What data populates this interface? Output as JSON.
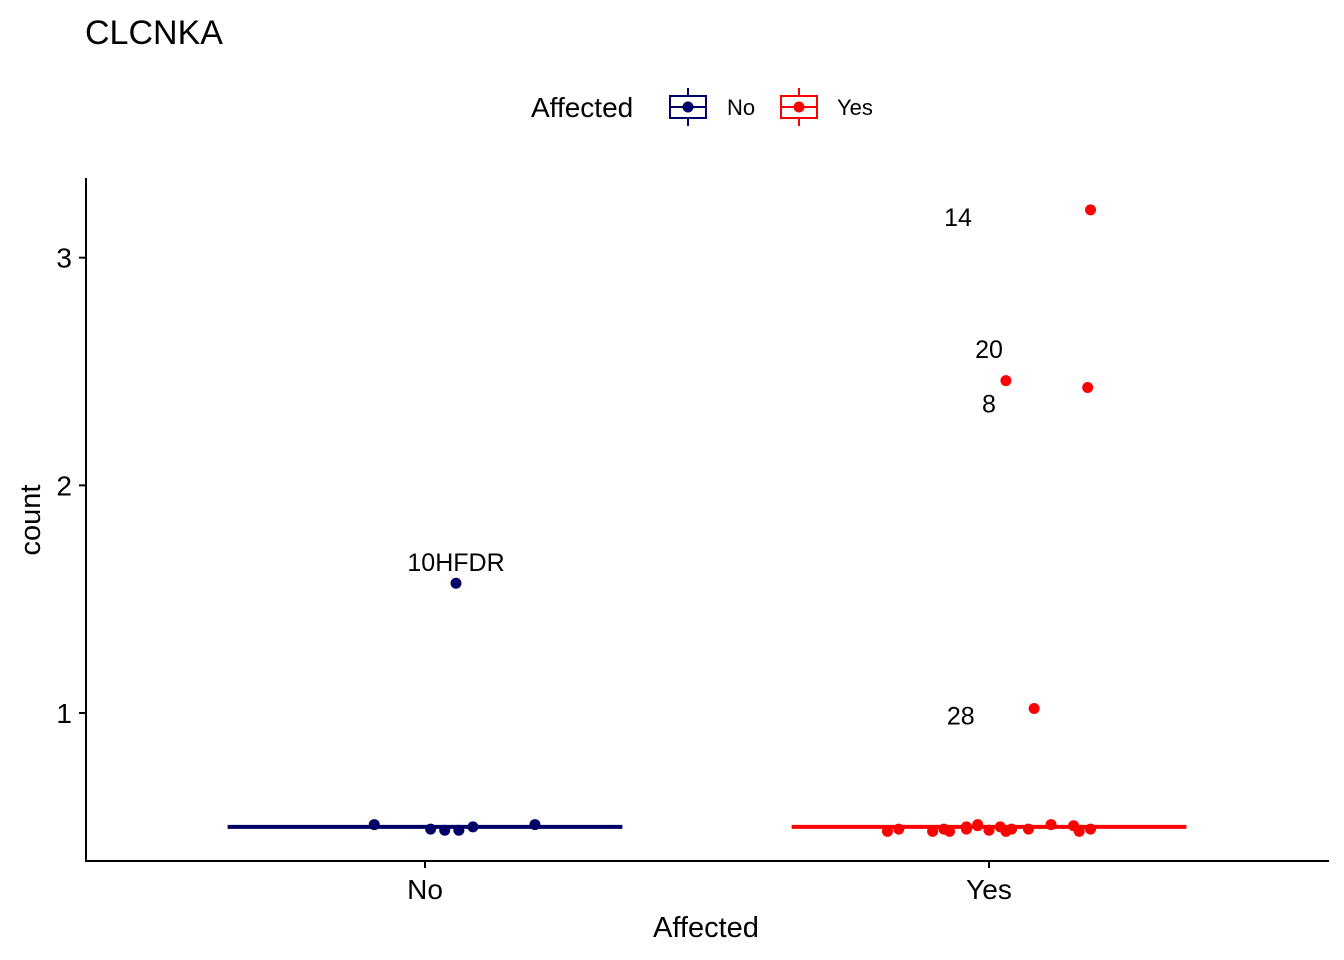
{
  "chart_data": {
    "type": "scatter",
    "title": "CLCNKA",
    "xlabel": "Affected",
    "ylabel": "count",
    "categories": [
      "No",
      "Yes"
    ],
    "ylim": [
      0.35,
      3.35
    ],
    "yticks": [
      1,
      2,
      3
    ],
    "legend": {
      "title": "Affected",
      "placement": "top",
      "entries": [
        "No",
        "Yes"
      ]
    },
    "series": [
      {
        "name": "No",
        "color": "#000066",
        "median": 0.5,
        "points": [
          {
            "x": "No",
            "jitter": -0.09,
            "y": 0.51
          },
          {
            "x": "No",
            "jitter": 0.01,
            "y": 0.49
          },
          {
            "x": "No",
            "jitter": 0.035,
            "y": 0.485
          },
          {
            "x": "No",
            "jitter": 0.06,
            "y": 0.485
          },
          {
            "x": "No",
            "jitter": 0.085,
            "y": 0.5
          },
          {
            "x": "No",
            "jitter": 0.195,
            "y": 0.51
          },
          {
            "x": "No",
            "jitter": 0.055,
            "y": 1.57,
            "label": "10HFDR"
          }
        ]
      },
      {
        "name": "Yes",
        "color": "#FF0000",
        "median": 0.5,
        "points": [
          {
            "x": "Yes",
            "jitter": -0.18,
            "y": 0.48
          },
          {
            "x": "Yes",
            "jitter": -0.16,
            "y": 0.49
          },
          {
            "x": "Yes",
            "jitter": -0.1,
            "y": 0.48
          },
          {
            "x": "Yes",
            "jitter": -0.08,
            "y": 0.49
          },
          {
            "x": "Yes",
            "jitter": -0.07,
            "y": 0.48
          },
          {
            "x": "Yes",
            "jitter": -0.04,
            "y": 0.5
          },
          {
            "x": "Yes",
            "jitter": -0.04,
            "y": 0.49
          },
          {
            "x": "Yes",
            "jitter": -0.02,
            "y": 0.505
          },
          {
            "x": "Yes",
            "jitter": -0.02,
            "y": 0.51
          },
          {
            "x": "Yes",
            "jitter": 0.0,
            "y": 0.485
          },
          {
            "x": "Yes",
            "jitter": 0.02,
            "y": 0.5
          },
          {
            "x": "Yes",
            "jitter": 0.03,
            "y": 0.48
          },
          {
            "x": "Yes",
            "jitter": 0.04,
            "y": 0.49
          },
          {
            "x": "Yes",
            "jitter": 0.07,
            "y": 0.49
          },
          {
            "x": "Yes",
            "jitter": 0.11,
            "y": 0.51
          },
          {
            "x": "Yes",
            "jitter": 0.15,
            "y": 0.505
          },
          {
            "x": "Yes",
            "jitter": 0.16,
            "y": 0.48
          },
          {
            "x": "Yes",
            "jitter": 0.18,
            "y": 0.49
          },
          {
            "x": "Yes",
            "jitter": 0.18,
            "y": 3.21,
            "label": "14",
            "label_dx": -0.235,
            "label_dy": -0.07
          },
          {
            "x": "Yes",
            "jitter": 0.03,
            "y": 2.46,
            "label": "20",
            "label_dx": -0.03,
            "label_dy": 0.1
          },
          {
            "x": "Yes",
            "jitter": 0.175,
            "y": 2.43,
            "label": "8",
            "label_dx": -0.175,
            "label_dy": -0.11
          },
          {
            "x": "Yes",
            "jitter": 0.08,
            "y": 1.02,
            "label": "28",
            "label_dx": -0.13,
            "label_dy": -0.07
          }
        ]
      }
    ]
  }
}
